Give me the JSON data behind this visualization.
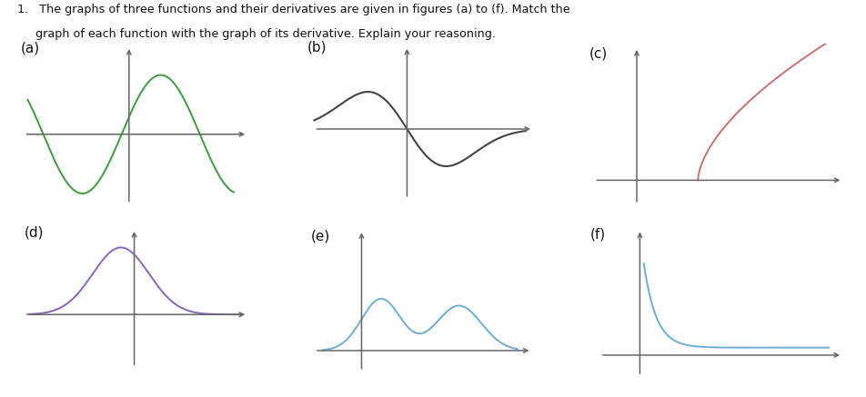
{
  "background_color": "#ffffff",
  "label_fontsize": 11,
  "labels": [
    "(a)",
    "(b)",
    "(c)",
    "(d)",
    "(e)",
    "(f)"
  ],
  "colors": {
    "a": "#3a9c3a",
    "b": "#444444",
    "c": "#c87070",
    "d": "#8866bb",
    "e": "#6baed6",
    "f": "#6baed6"
  },
  "title_line1": "1.   The graphs of three functions and their derivatives are given in figures (a) to (f). Match the",
  "title_line2": "     graph of each function with the graph of its derivative. Explain your reasoning."
}
